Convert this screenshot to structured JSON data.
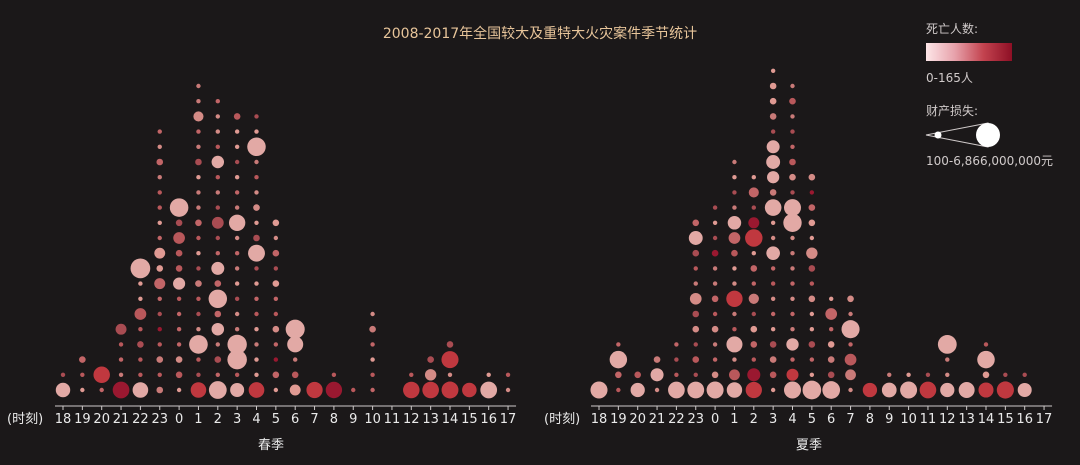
{
  "title": "2008-2017年全国较大及重特大火灾案件季节统计",
  "legend": {
    "death_title": "死亡人数:",
    "death_range": "0-165人",
    "loss_title": "财产损失:",
    "loss_range": "100-6,866,000,000元",
    "colors": [
      "#fde6e8",
      "#e7a2ab",
      "#c3434f",
      "#8e0f25"
    ]
  },
  "chart_data": [
    {
      "type": "scatter",
      "season": "春季",
      "hour_prefix": "(时刻)",
      "hours": [
        "18",
        "19",
        "20",
        "21",
        "22",
        "23",
        "0",
        "1",
        "2",
        "3",
        "4",
        "5",
        "6",
        "7",
        "8",
        "9",
        "10",
        "11",
        "12",
        "13",
        "14",
        "15",
        "16",
        "17"
      ],
      "counts": [
        2,
        3,
        2,
        5,
        9,
        18,
        13,
        21,
        20,
        19,
        19,
        12,
        5,
        1,
        2,
        1,
        6,
        0,
        2,
        3,
        4,
        1,
        2,
        2
      ],
      "large": {
        "7": [
          "0",
          "big"
        ],
        "6": [
          "0",
          "mid"
        ],
        "12": [
          "0",
          "big"
        ],
        "10": [
          "0",
          "mid"
        ],
        "4": [
          "0",
          "big"
        ],
        "11": [
          "0",
          "big"
        ],
        "20": [
          "0",
          "mid"
        ],
        "33": [
          "0",
          "mid"
        ],
        "34": [
          "1",
          "big"
        ],
        "86": [
          "1",
          "big"
        ],
        "83": [
          "0",
          "mid"
        ],
        "91": [
          "2",
          "mid"
        ],
        "92": [
          "0",
          "big"
        ],
        "152": [
          "0",
          "mid"
        ],
        "153": [
          "0",
          "mid"
        ],
        "164": [
          "0",
          "mid"
        ],
        "167": [
          "0",
          "big"
        ],
        "166": [
          "0",
          "mid"
        ],
        "170": [
          "0",
          "big"
        ]
      }
    },
    {
      "type": "scatter",
      "season": "夏季",
      "hour_prefix": "(时刻)",
      "hours": [
        "18",
        "19",
        "20",
        "21",
        "22",
        "23",
        "0",
        "1",
        "2",
        "3",
        "4",
        "5",
        "6",
        "7",
        "8",
        "9",
        "10",
        "11",
        "12",
        "13",
        "14",
        "15",
        "16",
        "17"
      ],
      "counts": [
        1,
        4,
        2,
        3,
        4,
        12,
        13,
        16,
        15,
        22,
        21,
        15,
        7,
        7,
        1,
        2,
        2,
        2,
        4,
        1,
        4,
        2,
        2,
        0
      ],
      "large": {}
    }
  ]
}
